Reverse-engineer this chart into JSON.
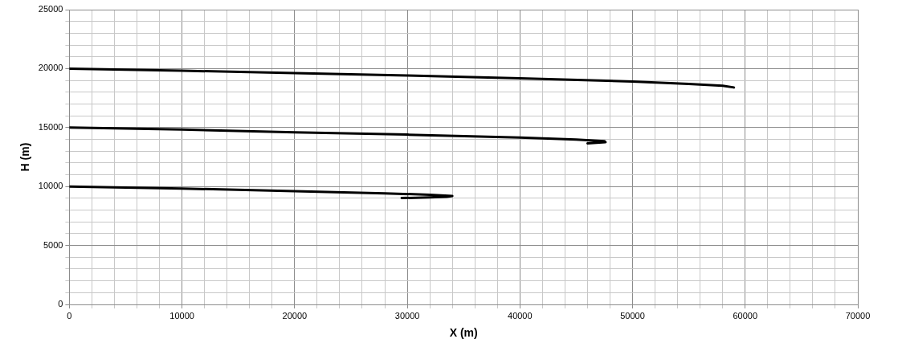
{
  "chart_data": {
    "type": "line",
    "xlabel": "X (m)",
    "ylabel": "H (m)",
    "xlim": [
      0,
      70000
    ],
    "ylim": [
      0,
      25000
    ],
    "xticks": [
      0,
      {
        "value": 2000,
        "label": null
      },
      {
        "value": 4000,
        "label": null
      },
      {
        "value": 6000,
        "label": null
      },
      {
        "value": 8000,
        "label": null
      },
      10000,
      {
        "value": 12000,
        "label": null
      },
      {
        "value": 14000,
        "label": null
      },
      {
        "value": 16000,
        "label": null
      },
      {
        "value": 18000,
        "label": null
      },
      20000,
      {
        "value": 22000,
        "label": null
      },
      {
        "value": 24000,
        "label": null
      },
      {
        "value": 26000,
        "label": null
      },
      {
        "value": 28000,
        "label": null
      },
      30000,
      {
        "value": 32000,
        "label": null
      },
      {
        "value": 34000,
        "label": null
      },
      {
        "value": 36000,
        "label": null
      },
      {
        "value": 38000,
        "label": null
      },
      40000,
      {
        "value": 42000,
        "label": null
      },
      {
        "value": 44000,
        "label": null
      },
      {
        "value": 46000,
        "label": null
      },
      {
        "value": 48000,
        "label": null
      },
      50000,
      {
        "value": 52000,
        "label": null
      },
      {
        "value": 54000,
        "label": null
      },
      {
        "value": 56000,
        "label": null
      },
      {
        "value": 58000,
        "label": null
      },
      60000,
      {
        "value": 62000,
        "label": null
      },
      {
        "value": 64000,
        "label": null
      },
      {
        "value": 66000,
        "label": null
      },
      {
        "value": 68000,
        "label": null
      },
      70000
    ],
    "yticks": [
      0,
      {
        "value": 1000,
        "label": null
      },
      {
        "value": 2000,
        "label": null
      },
      {
        "value": 3000,
        "label": null
      },
      {
        "value": 4000,
        "label": null
      },
      5000,
      {
        "value": 6000,
        "label": null
      },
      {
        "value": 7000,
        "label": null
      },
      {
        "value": 8000,
        "label": null
      },
      {
        "value": 9000,
        "label": null
      },
      10000,
      {
        "value": 11000,
        "label": null
      },
      {
        "value": 12000,
        "label": null
      },
      {
        "value": 13000,
        "label": null
      },
      {
        "value": 14000,
        "label": null
      },
      15000,
      {
        "value": 16000,
        "label": null
      },
      {
        "value": 17000,
        "label": null
      },
      {
        "value": 18000,
        "label": null
      },
      {
        "value": 19000,
        "label": null
      },
      20000,
      {
        "value": 21000,
        "label": null
      },
      {
        "value": 22000,
        "label": null
      },
      {
        "value": 23000,
        "label": null
      },
      {
        "value": 24000,
        "label": null
      },
      25000
    ],
    "grid": true,
    "legend": false,
    "marker": "none",
    "line_style": "solid",
    "series": [
      {
        "color": "#000000",
        "x": [
          0,
          10000,
          20000,
          28000,
          32000,
          34000,
          33500,
          32000,
          29500
        ],
        "values": [
          10000,
          9830,
          9600,
          9420,
          9300,
          9200,
          9130,
          9080,
          9020
        ]
      },
      {
        "color": "#000000",
        "x": [
          0,
          10000,
          20000,
          30000,
          40000,
          45000,
          47500,
          47600,
          46000
        ],
        "values": [
          15000,
          14830,
          14600,
          14400,
          14150,
          13980,
          13850,
          13760,
          13660
        ]
      },
      {
        "color": "#000000",
        "x": [
          0,
          10000,
          20000,
          30000,
          40000,
          50000,
          55000,
          58000,
          59000
        ],
        "values": [
          20000,
          19820,
          19620,
          19420,
          19180,
          18900,
          18700,
          18550,
          18400
        ]
      }
    ]
  }
}
